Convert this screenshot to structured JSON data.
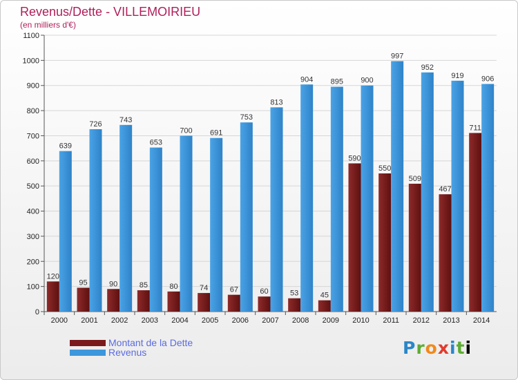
{
  "header": {
    "title": "Revenus/Dette - VILLEMOIRIEU",
    "subtitle": "(en milliers d'€)"
  },
  "legend": {
    "items": [
      {
        "label": "Montant de la Dette",
        "color": "#7a1a1a"
      },
      {
        "label": "Revenus",
        "color": "#3d97dc"
      }
    ]
  },
  "logo": {
    "text": "Proxiti"
  },
  "chart_data": {
    "type": "bar",
    "title": "Revenus/Dette - VILLEMOIRIEU",
    "subtitle": "(en milliers d'€)",
    "categories": [
      "2000",
      "2001",
      "2002",
      "2003",
      "2004",
      "2005",
      "2006",
      "2007",
      "2008",
      "2009",
      "2010",
      "2011",
      "2012",
      "2013",
      "2014"
    ],
    "series": [
      {
        "name": "Montant de la Dette",
        "color": "#7a1a1a",
        "values": [
          120,
          95,
          90,
          85,
          80,
          74,
          67,
          60,
          53,
          45,
          590,
          550,
          509,
          467,
          711
        ]
      },
      {
        "name": "Revenus",
        "color": "#3d97dc",
        "values": [
          639,
          726,
          743,
          653,
          700,
          691,
          753,
          813,
          904,
          895,
          900,
          997,
          952,
          919,
          906
        ]
      }
    ],
    "yticks": [
      0,
      100,
      200,
      300,
      400,
      500,
      600,
      700,
      800,
      900,
      1000,
      1100
    ],
    "ylim": [
      0,
      1100
    ],
    "grid": true,
    "legend_position": "bottom-left"
  }
}
